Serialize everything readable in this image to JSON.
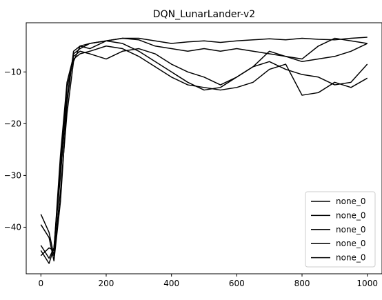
{
  "chart_data": {
    "type": "line",
    "title": "DQN_LunarLander-v2",
    "xlabel": "",
    "ylabel": "",
    "xlim": [
      -45,
      1045
    ],
    "ylim": [
      -49,
      -0.5
    ],
    "xticks": [
      0,
      200,
      400,
      600,
      800,
      1000
    ],
    "yticks": [
      -40,
      -30,
      -20,
      -10
    ],
    "xtick_labels": [
      "0",
      "200",
      "400",
      "600",
      "800",
      "1000"
    ],
    "ytick_labels": [
      "−40",
      "−30",
      "−20",
      "−10"
    ],
    "grid": false,
    "legend_position": "lower-right",
    "series": [
      {
        "name": "none_0",
        "color": "#000000",
        "x": [
          0,
          25,
          40,
          60,
          80,
          100,
          120,
          150,
          200,
          250,
          300,
          350,
          400,
          450,
          500,
          550,
          600,
          650,
          700,
          750,
          800,
          850,
          900,
          950,
          1000
        ],
        "y": [
          -43.5,
          -46.0,
          -44.0,
          -30.0,
          -15.0,
          -6.5,
          -5.5,
          -4.5,
          -4.0,
          -3.5,
          -3.5,
          -4.0,
          -4.5,
          -4.2,
          -4.0,
          -4.3,
          -4.0,
          -3.8,
          -3.6,
          -3.8,
          -3.5,
          -3.7,
          -3.8,
          -3.5,
          -3.3
        ]
      },
      {
        "name": "none_0",
        "color": "#000000",
        "x": [
          0,
          25,
          40,
          60,
          80,
          100,
          120,
          150,
          200,
          250,
          300,
          350,
          400,
          450,
          500,
          550,
          600,
          650,
          700,
          750,
          800,
          850,
          900,
          950,
          1000
        ],
        "y": [
          -37.5,
          -41.0,
          -45.5,
          -33.0,
          -18.0,
          -8.0,
          -5.0,
          -4.5,
          -4.0,
          -3.5,
          -3.8,
          -5.0,
          -5.5,
          -6.0,
          -5.5,
          -6.0,
          -5.5,
          -6.0,
          -6.5,
          -7.0,
          -7.5,
          -5.0,
          -3.5,
          -4.0,
          -4.5
        ]
      },
      {
        "name": "none_0",
        "color": "#000000",
        "x": [
          0,
          25,
          40,
          60,
          80,
          100,
          120,
          150,
          200,
          250,
          300,
          350,
          400,
          450,
          500,
          550,
          600,
          650,
          700,
          750,
          800,
          850,
          900,
          950,
          1000
        ],
        "y": [
          -45.5,
          -44.0,
          -44.5,
          -26.0,
          -12.0,
          -7.0,
          -6.0,
          -6.5,
          -7.5,
          -6.0,
          -5.5,
          -6.5,
          -8.5,
          -10.0,
          -11.0,
          -12.5,
          -11.0,
          -9.0,
          -6.0,
          -7.0,
          -8.0,
          -7.5,
          -7.0,
          -6.0,
          -4.5
        ]
      },
      {
        "name": "none_0",
        "color": "#000000",
        "x": [
          0,
          25,
          40,
          60,
          80,
          100,
          120,
          150,
          200,
          250,
          300,
          350,
          400,
          450,
          500,
          550,
          600,
          650,
          700,
          750,
          800,
          850,
          900,
          950,
          1000
        ],
        "y": [
          -39.5,
          -42.0,
          -46.5,
          -35.0,
          -16.0,
          -6.0,
          -5.0,
          -5.5,
          -4.0,
          -4.5,
          -6.0,
          -8.0,
          -10.0,
          -12.0,
          -13.5,
          -13.0,
          -11.0,
          -9.0,
          -8.0,
          -9.5,
          -10.5,
          -11.0,
          -12.5,
          -12.0,
          -8.5
        ]
      },
      {
        "name": "none_0",
        "color": "#000000",
        "x": [
          0,
          25,
          40,
          60,
          80,
          100,
          120,
          150,
          200,
          250,
          300,
          350,
          400,
          450,
          500,
          550,
          600,
          650,
          700,
          750,
          800,
          850,
          900,
          950,
          1000
        ],
        "y": [
          -44.5,
          -47.0,
          -44.0,
          -28.0,
          -13.0,
          -7.5,
          -6.5,
          -6.0,
          -5.0,
          -5.5,
          -7.0,
          -9.0,
          -11.0,
          -12.5,
          -13.0,
          -13.5,
          -13.0,
          -12.0,
          -9.5,
          -8.5,
          -14.5,
          -14.0,
          -12.0,
          -13.0,
          -11.2
        ]
      }
    ]
  }
}
